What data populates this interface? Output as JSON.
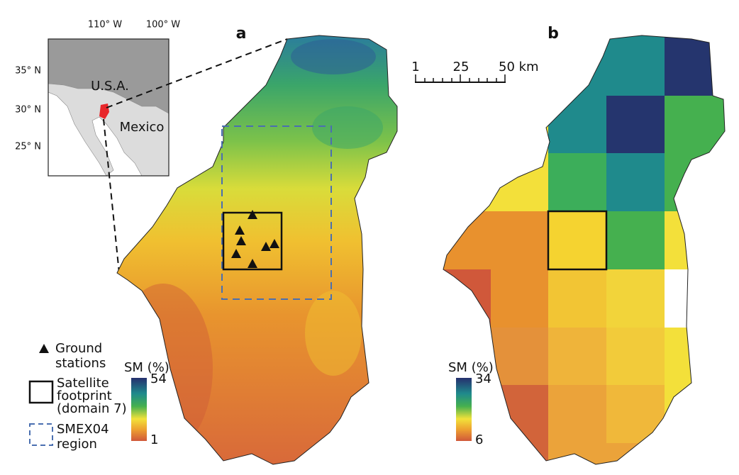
{
  "panels": {
    "a": {
      "label": "a"
    },
    "b": {
      "label": "b"
    }
  },
  "inset": {
    "lon_labels": [
      "110° W",
      "100° W"
    ],
    "lat_labels": [
      "35° N",
      "30° N",
      "25° N"
    ],
    "country_labels": [
      "U.S.A.",
      "Mexico"
    ]
  },
  "scale_bar": {
    "labels": [
      "1",
      "25",
      "50 km"
    ]
  },
  "legend": {
    "items": [
      {
        "lines": [
          "Ground",
          "stations"
        ]
      },
      {
        "lines": [
          "Satellite",
          "footprint",
          "(domain 7)"
        ]
      },
      {
        "lines": [
          "SMEX04",
          "region"
        ]
      }
    ]
  },
  "colorbars": [
    {
      "title": "SM (%)",
      "max": 54,
      "min": 1
    },
    {
      "title": "SM (%)",
      "max": 34,
      "min": 6
    }
  ]
}
